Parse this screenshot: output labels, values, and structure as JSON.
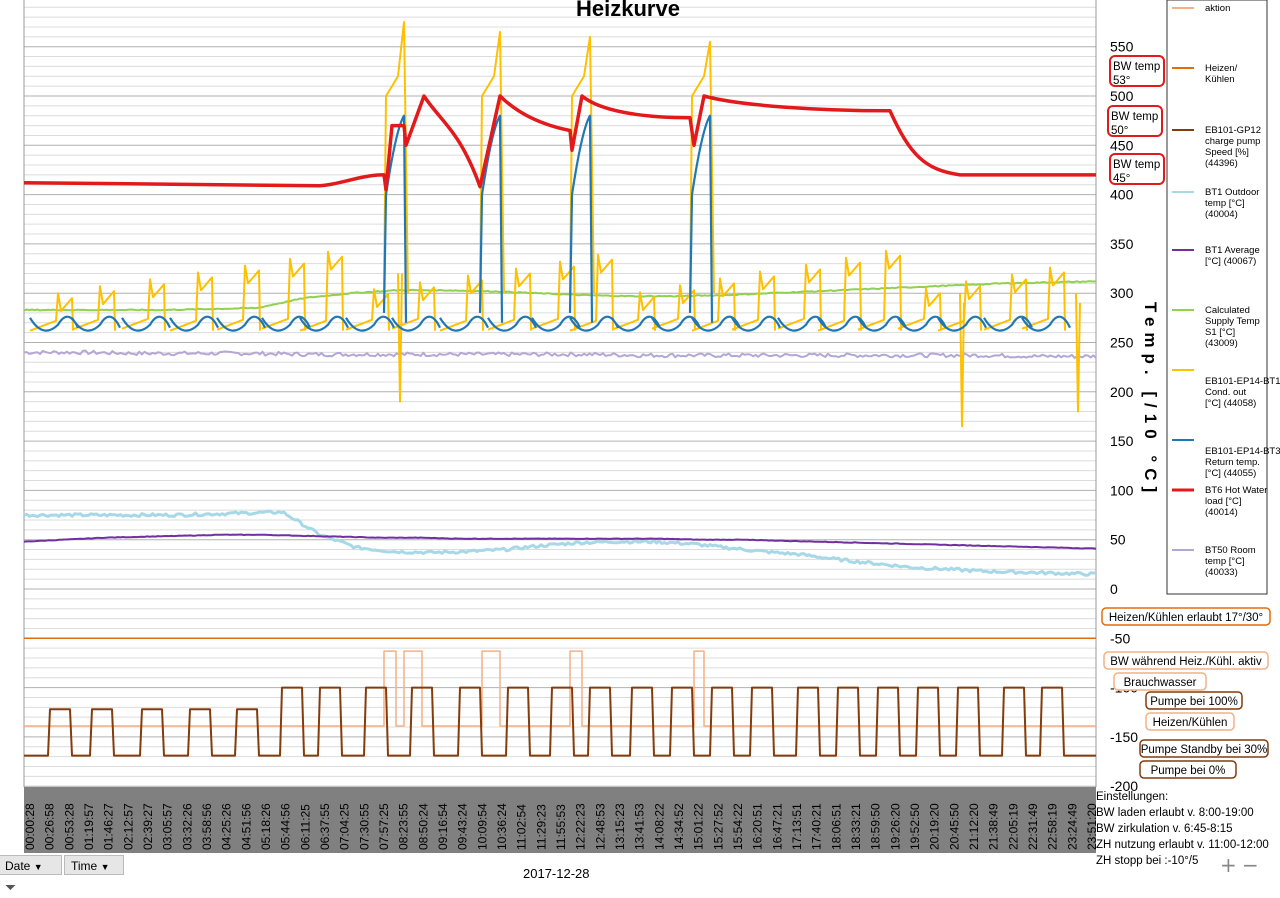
{
  "chart_data": {
    "type": "line",
    "title": "Heizkurve",
    "ylabel": "Temp. [/10 °C]",
    "ylim": [
      -200,
      600
    ],
    "yticks": [
      550,
      500,
      450,
      400,
      350,
      300,
      250,
      200,
      150,
      100,
      50,
      0,
      -50,
      -100,
      -150,
      -200
    ],
    "x_labels": [
      "00:00:28",
      "00:26:58",
      "00:53:28",
      "01:19:57",
      "01:46:27",
      "02:12:57",
      "02:39:27",
      "03:05:57",
      "03:32:26",
      "03:58:56",
      "04:25:26",
      "04:51:56",
      "05:18:26",
      "05:44:56",
      "06:11:25",
      "06:37:55",
      "07:04:25",
      "07:30:55",
      "07:57:25",
      "08:23:55",
      "08:50:24",
      "09:16:54",
      "09:43:24",
      "10:09:54",
      "10:36:24",
      "11:02:54",
      "11:29:23",
      "11:55:53",
      "12:22:23",
      "12:48:53",
      "13:15:23",
      "13:41:53",
      "14:08:22",
      "14:34:52",
      "15:01:22",
      "15:27:52",
      "15:54:22",
      "16:20:51",
      "16:47:21",
      "17:13:51",
      "17:40:21",
      "18:06:51",
      "18:33:21",
      "18:59:50",
      "19:26:20",
      "19:52:50",
      "20:19:20",
      "20:45:50",
      "21:12:20",
      "21:38:49",
      "22:05:19",
      "22:31:49",
      "22:58:19",
      "23:24:49",
      "23:51:20"
    ],
    "date": "2017-12-28",
    "series": [
      {
        "name": "aktion",
        "color": "#f4b183"
      },
      {
        "name": "Heizen/ Kühlen",
        "color": "#e46c0a"
      },
      {
        "name": "EB101-GP12 charge pump Speed [%] (44396)",
        "color": "#843c0c"
      },
      {
        "name": "BT1 Outdoor temp [°C] (40004)",
        "color": "#a7d8e8",
        "values_by_hour": [
          75,
          75,
          75,
          75,
          75,
          76,
          77,
          78,
          55,
          42,
          38,
          37,
          38,
          40,
          44,
          47,
          48,
          48,
          46,
          42,
          38,
          35,
          30,
          26,
          22,
          20,
          18,
          17,
          16,
          15
        ]
      },
      {
        "name": "BT1 Average [°C] (40067)",
        "color": "#7030a0",
        "values_by_hour": [
          48,
          50,
          52,
          53,
          54,
          55,
          55,
          54,
          53,
          52,
          52,
          51,
          51,
          51,
          51,
          51,
          51,
          50,
          50,
          49,
          48,
          47,
          46,
          45,
          44,
          43,
          42,
          41
        ]
      },
      {
        "name": "Calculated Supply Temp S1 [°C] (43009)",
        "color": "#92d050",
        "values_by_hour": [
          283,
          283,
          283,
          283,
          284,
          285,
          295,
          300,
          303,
          303,
          302,
          300,
          298,
          297,
          297,
          298,
          300,
          302,
          304,
          306,
          308,
          310,
          311,
          312
        ]
      },
      {
        "name": "EB101-EP14-BT12 Cond. out [°C] (44058)",
        "color": "#ffc000",
        "cycle_min": 262,
        "cycle_max": 345
      },
      {
        "name": "EB101-EP14-BT3 Return temp. [°C] (44055)",
        "color": "#1f77b4",
        "cycle_min": 262,
        "cycle_max": 295
      },
      {
        "name": "BT6 Hot Water load [°C] (40014)",
        "color": "#e31a1c",
        "values_by_hour": [
          412,
          412,
          412,
          411,
          410,
          410,
          409,
          408,
          410,
          412,
          490,
          460,
          500,
          470,
          500,
          480,
          478,
          476,
          498,
          494,
          492,
          490,
          488,
          487,
          486,
          485,
          484,
          440,
          420,
          420,
          420,
          420
        ]
      },
      {
        "name": "BT50 Room temp [°C] (40033)",
        "color": "#b4a7d6",
        "values_by_hour": [
          240,
          240,
          239,
          239,
          239,
          238,
          238,
          238,
          238,
          238,
          238,
          237,
          237,
          237,
          237,
          237,
          237,
          237,
          236,
          236
        ]
      }
    ],
    "callouts": [
      "BW temp 53°",
      "BW temp 50°",
      "BW temp 45°"
    ],
    "bottom_callouts": [
      "Heizen/Kühlen erlaubt 17°/30°",
      "BW während Heiz./Kühl. aktiv",
      "Brauchwasser",
      "Pumpe bei 100%",
      "Heizen/Kühlen",
      "Pumpe Standby bei 30%",
      "Pumpe bei 0%"
    ]
  },
  "settings": {
    "title": "Einstellungen:",
    "lines": [
      "BW laden erlaubt v. 8:00-19:00",
      "BW zirkulation v. 6:45-8:15",
      "ZH nutzung erlaubt v. 11:00-12:00",
      "ZH stopp bei :-10°/5"
    ]
  },
  "filters": {
    "date_label": "Date",
    "time_label": "Time"
  },
  "zoom": {
    "plus": "+",
    "minus": "−"
  }
}
